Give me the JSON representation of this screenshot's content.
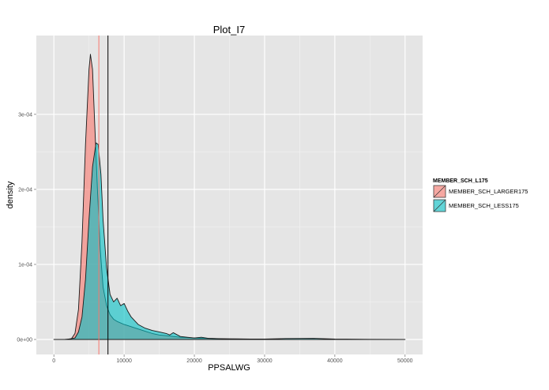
{
  "chart_data": {
    "type": "area",
    "title": "Plot_I7",
    "xlabel": "PPSALWG",
    "ylabel": "density",
    "xlim": [
      -2500,
      52500
    ],
    "ylim": [
      -2e-05,
      0.000405
    ],
    "x_ticks": [
      0,
      10000,
      20000,
      30000,
      40000,
      50000
    ],
    "x_tick_labels": [
      "0",
      "10000",
      "20000",
      "30000",
      "40000",
      "50000"
    ],
    "y_ticks": [
      0,
      0.0001,
      0.0002,
      0.0003
    ],
    "y_tick_labels": [
      "0e+00",
      "1e-04",
      "2e-04",
      "3e-04"
    ],
    "grid": true,
    "legend": {
      "title": "MEMBER_SCH_L175",
      "position": "right"
    },
    "series": [
      {
        "name": "MEMBER_SCH_LARGER175",
        "color": "#F8766D",
        "fill_opacity": 0.6,
        "x": [
          0,
          1500,
          2500,
          3000,
          3500,
          4000,
          4500,
          5000,
          5200,
          5500,
          5800,
          6200,
          6600,
          7000,
          7500,
          8000,
          8500,
          9000,
          10000,
          11000,
          12000,
          13000,
          14000,
          15000,
          16000,
          17000,
          18000,
          20000,
          25000,
          30000,
          40000,
          50000
        ],
        "y": [
          0,
          1e-07,
          1e-06,
          8e-06,
          4e-05,
          0.00013,
          0.00026,
          0.00036,
          0.00038,
          0.00036,
          0.00029,
          0.0002,
          0.00012,
          7e-05,
          4.5e-05,
          3.3e-05,
          2.7e-05,
          2.4e-05,
          2e-05,
          1.7e-05,
          1.4e-05,
          1.1e-05,
          8e-06,
          6e-06,
          5e-06,
          4e-06,
          3e-06,
          2e-06,
          5e-07,
          1e-07,
          0,
          0
        ]
      },
      {
        "name": "MEMBER_SCH_LESS175",
        "color": "#00BFC4",
        "fill_opacity": 0.6,
        "x": [
          0,
          2000,
          3000,
          3500,
          4000,
          4500,
          5000,
          5500,
          6000,
          6300,
          6700,
          7000,
          7500,
          8000,
          8500,
          9000,
          9500,
          10000,
          10500,
          11000,
          12000,
          13000,
          14000,
          15000,
          16000,
          16500,
          17000,
          18000,
          19000,
          20000,
          21000,
          22000,
          24000,
          26000,
          28000,
          30000,
          33000,
          37000,
          40000,
          45000,
          50000
        ],
        "y": [
          0,
          2e-07,
          2e-06,
          1e-05,
          3e-05,
          8e-05,
          0.00016,
          0.00023,
          0.000262,
          0.00026,
          0.00022,
          0.00016,
          9.5e-05,
          6e-05,
          5e-05,
          5.5e-05,
          4.5e-05,
          4.8e-05,
          3.8e-05,
          3e-05,
          2e-05,
          1.5e-05,
          1.2e-05,
          1e-05,
          8e-06,
          6e-06,
          9e-06,
          4e-06,
          3e-06,
          2e-06,
          3e-06,
          1.5e-06,
          1e-06,
          8e-07,
          6e-07,
          5e-07,
          1.2e-06,
          1.5e-06,
          5e-07,
          2e-07,
          0
        ]
      }
    ],
    "vlines": [
      {
        "x": 6400,
        "color": "#F8766D"
      },
      {
        "x": 7700,
        "color": "#000000"
      }
    ]
  }
}
